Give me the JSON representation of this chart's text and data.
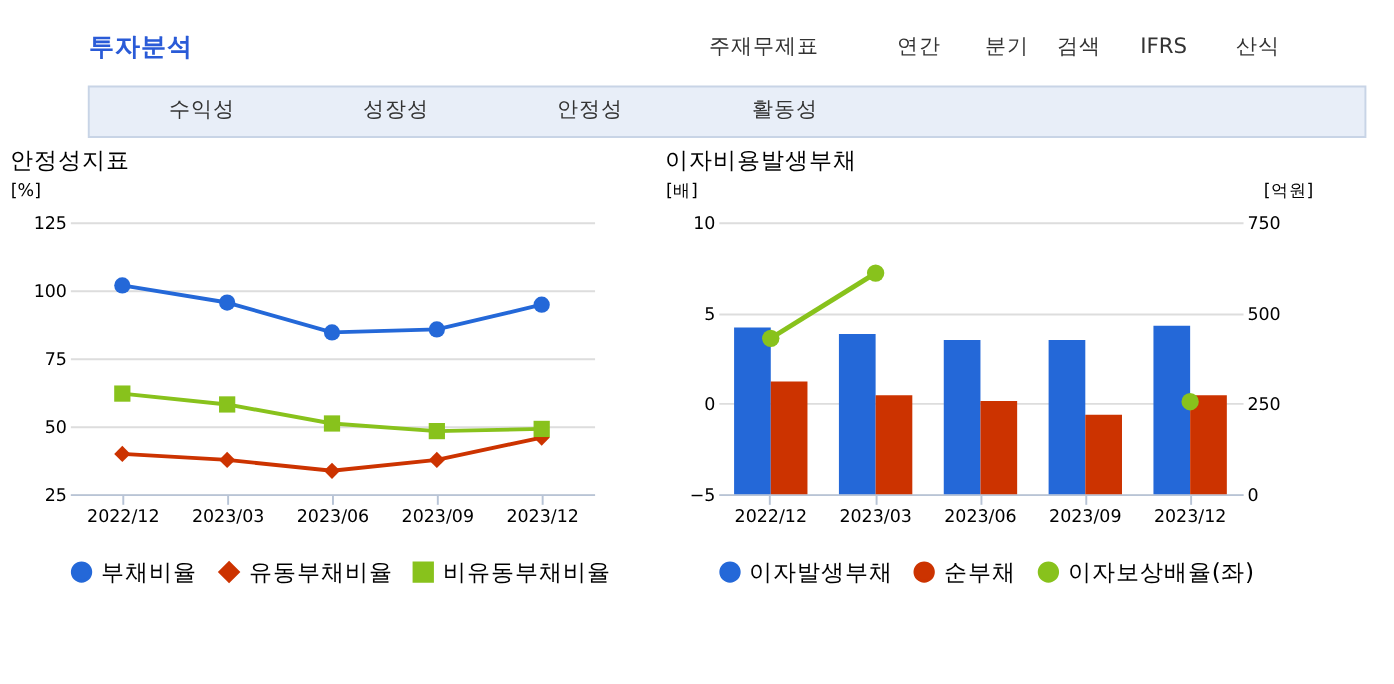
{
  "chart_data": [
    {
      "type": "other",
      "title": "투자분석",
      "annotations": [
        "주재무제표",
        "연간",
        "분기",
        "검색",
        "IFRS",
        "산식",
        "수익성",
        "성장성",
        "안정성",
        "활동성"
      ]
    },
    {
      "type": "line",
      "title": "안정성지표",
      "ylabel": "[%]",
      "categories": [
        "2022/12",
        "2023/03",
        "2023/06",
        "2023/09",
        "2023/12"
      ],
      "ylim": [
        25,
        125
      ],
      "yticks": [
        25,
        50,
        75,
        100,
        125
      ],
      "grid": "y",
      "legend": "bottom",
      "line_style": "solid",
      "series": [
        {
          "name": "부채비율",
          "color": "#2468d8",
          "marker": "circle",
          "values": [
            101.8,
            95.5,
            84.5,
            85.6,
            94.7
          ]
        },
        {
          "name": "유동부채비율",
          "color": "#cc3300",
          "marker": "diamond",
          "values": [
            39.8,
            37.6,
            33.6,
            37.6,
            45.8
          ]
        },
        {
          "name": "비유동부채비율",
          "color": "#88c21c",
          "marker": "square",
          "values": [
            62,
            58,
            51,
            48.2,
            49
          ]
        }
      ]
    },
    {
      "type": "bar",
      "title": "이자비용발생부채",
      "ylabel": "[배]",
      "y2label": "[억원]",
      "categories": [
        "2022/12",
        "2023/03",
        "2023/06",
        "2023/09",
        "2023/12"
      ],
      "ylim": [
        -5,
        10
      ],
      "yticks": [
        -5,
        0,
        5,
        10
      ],
      "y2lim": [
        0,
        750
      ],
      "y2ticks": [
        0,
        250,
        500,
        750
      ],
      "grid": "y",
      "legend": "bottom",
      "series": [
        {
          "name": "이자발생부채",
          "color": "#2468d8",
          "axis": "y2",
          "values": [
            460,
            442,
            425,
            425,
            465
          ]
        },
        {
          "name": "순부채",
          "color": "#cc3300",
          "axis": "y2",
          "values": [
            311,
            273,
            257,
            219,
            273
          ]
        },
        {
          "name": "이자보상배율(좌)",
          "type": "line",
          "color": "#88c21c",
          "marker": "circle",
          "values": [
            3.6,
            7.2,
            null,
            null,
            0.1
          ]
        }
      ]
    }
  ]
}
